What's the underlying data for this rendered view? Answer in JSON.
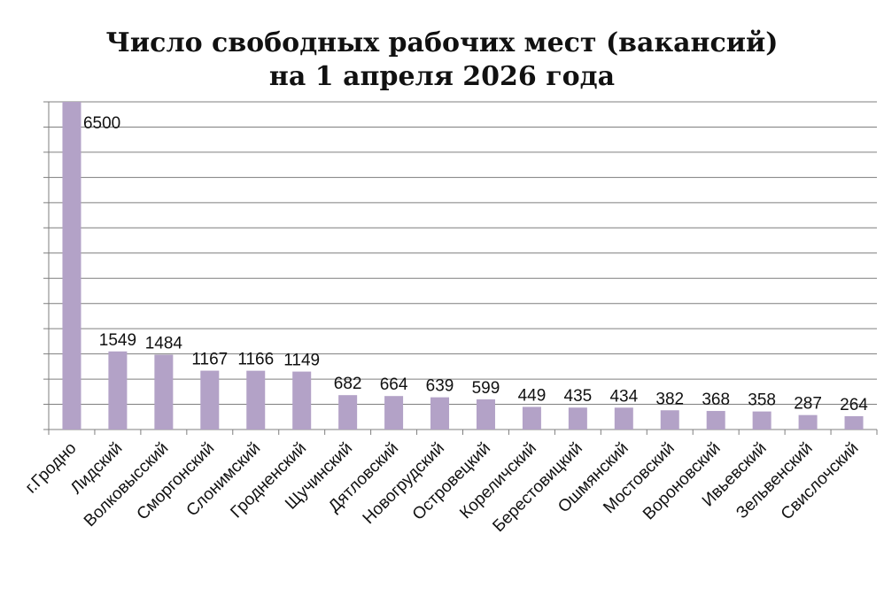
{
  "chart_data": {
    "type": "bar",
    "title_line1": "Число свободных рабочих мест (вакансий)",
    "title_line2": "на 1 апреля 2026 года",
    "categories": [
      "г.Гродно",
      "Лидский",
      "Волковысский",
      "Сморгонский",
      "Слонимский",
      "Гродненский",
      "Щучинский",
      "Дятловский",
      "Новогрудский",
      "Островецкий",
      "Кореличский",
      "Берестовицкий",
      "Ошмянский",
      "Мостовский",
      "Вороновский",
      "Ивьевский",
      "Зельвенский",
      "Свислочский"
    ],
    "values": [
      6500,
      1549,
      1484,
      1167,
      1166,
      1149,
      682,
      664,
      639,
      599,
      449,
      435,
      434,
      382,
      368,
      358,
      287,
      264
    ],
    "grid": true,
    "legend": "none",
    "bar_color": "#b3a2c7",
    "gridline_color": "#7f7f7f"
  }
}
